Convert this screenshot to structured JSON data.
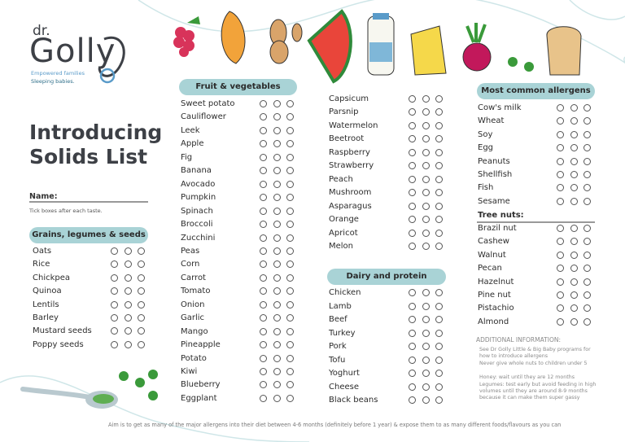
{
  "logo": {
    "prefix": "dr.",
    "name": "Golly",
    "tagline": [
      "Empowered families",
      "Sleeping babies."
    ]
  },
  "title": "Introducing Solids List",
  "name_label": "Name:",
  "instruction": "Tick boxes after each taste.",
  "grains": {
    "heading": "Grains, legumes & seeds",
    "items": [
      "Oats",
      "Rice",
      "Chickpea",
      "Quinoa",
      "Lentils",
      "Barley",
      "Mustard seeds",
      "Poppy seeds"
    ]
  },
  "fruit_veg": {
    "heading": "Fruit & vegetables",
    "columns": [
      [
        "Sweet potato",
        "Cauliflower",
        "Leek",
        "Apple",
        "Fig",
        "Banana",
        "Avocado",
        "Pumpkin",
        "Spinach",
        "Broccoli",
        "Zucchini",
        "Peas",
        "Corn",
        "Carrot",
        "Tomato",
        "Onion",
        "Garlic",
        "Mango",
        "Pineapple",
        "Potato",
        "Kiwi",
        "Blueberry",
        "Eggplant"
      ],
      [
        "Capsicum",
        "Parsnip",
        "Watermelon",
        "Beetroot",
        "Raspberry",
        "Strawberry",
        "Peach",
        "Mushroom",
        "Asparagus",
        "Orange",
        "Apricot",
        "Melon"
      ]
    ]
  },
  "dairy_protein": {
    "heading": "Dairy and protein",
    "items": [
      "Chicken",
      "Lamb",
      "Beef",
      "Turkey",
      "Pork",
      "Tofu",
      "Yoghurt",
      "Cheese",
      "Black beans"
    ]
  },
  "allergens": {
    "heading": "Most common allergens",
    "items": [
      "Cow's milk",
      "Wheat",
      "Soy",
      "Egg",
      "Peanuts",
      "Shellfish",
      "Fish",
      "Sesame"
    ],
    "tree_nuts": {
      "heading": "Tree nuts:",
      "items": [
        "Brazil nut",
        "Cashew",
        "Walnut",
        "Pecan",
        "Hazelnut",
        "Pine nut",
        "Pistachio",
        "Almond"
      ]
    }
  },
  "additional_info": {
    "heading": "ADDITIONAL INFORMATION:",
    "notes": [
      "See Dr Golly Little & Big Baby programs for how to introduce allergens",
      "Never give whole nuts to children under 5",
      "Honey: wait until they are 12 months",
      "Legumes: test early but avoid feeding in high volumes until they are around 8-9 months because it can make them super gassy"
    ]
  },
  "footer": "Aim is to get as many of the major allergens into their diet between 4-6 months (definitely before 1 year) & expose them to as many different foods/flavours as you can"
}
